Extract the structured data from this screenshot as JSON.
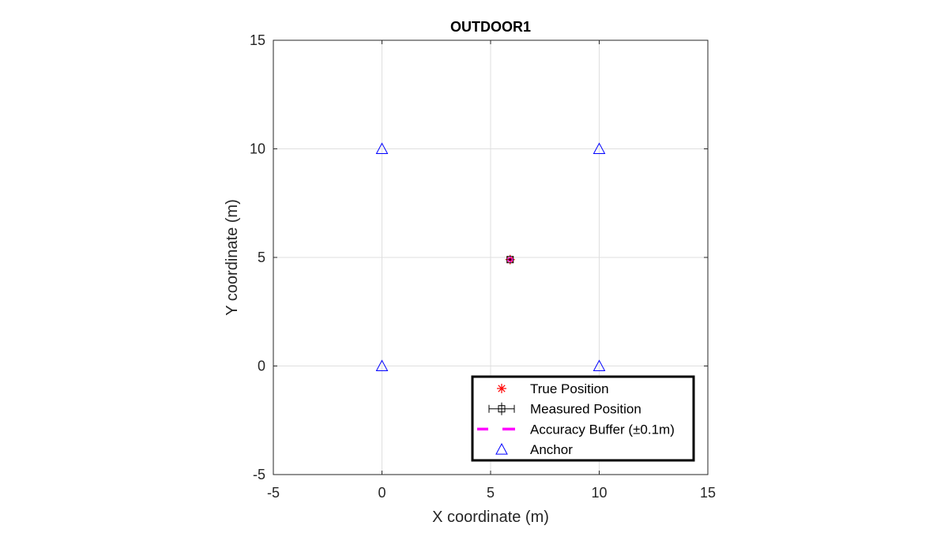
{
  "chart_data": {
    "type": "scatter",
    "title": "OUTDOOR1",
    "xlabel": "X coordinate (m)",
    "ylabel": "Y coordinate (m)",
    "xlim": [
      -5,
      15
    ],
    "ylim": [
      -5,
      15
    ],
    "xticks": [
      -5,
      0,
      5,
      10,
      15
    ],
    "yticks": [
      -5,
      0,
      5,
      10,
      15
    ],
    "xtick_labels": [
      "-5",
      "0",
      "5",
      "10",
      "15"
    ],
    "ytick_labels": [
      "-5",
      "0",
      "5",
      "10",
      "15"
    ],
    "grid": true,
    "legend_position": "bottom-right",
    "series": [
      {
        "name": "True Position",
        "marker": "asterisk",
        "color": "#ff0000",
        "points": [
          {
            "x": 5.9,
            "y": 4.9
          }
        ]
      },
      {
        "name": "Measured Position",
        "marker": "square-errorbar",
        "color": "#000000",
        "points": [
          {
            "x": 5.9,
            "y": 4.9,
            "xerr": 0.1,
            "yerr": 0.1
          }
        ]
      },
      {
        "name": "Accuracy Buffer (±0.1m)",
        "marker": "dashed-line",
        "color": "#ff00ff",
        "points": [
          {
            "x": 5.9,
            "y": 4.9,
            "radius": 0.1
          }
        ]
      },
      {
        "name": "Anchor",
        "marker": "triangle",
        "color": "#0000ff",
        "points": [
          {
            "x": 0,
            "y": 0
          },
          {
            "x": 10,
            "y": 0
          },
          {
            "x": 0,
            "y": 10
          },
          {
            "x": 10,
            "y": 10
          }
        ]
      }
    ]
  }
}
